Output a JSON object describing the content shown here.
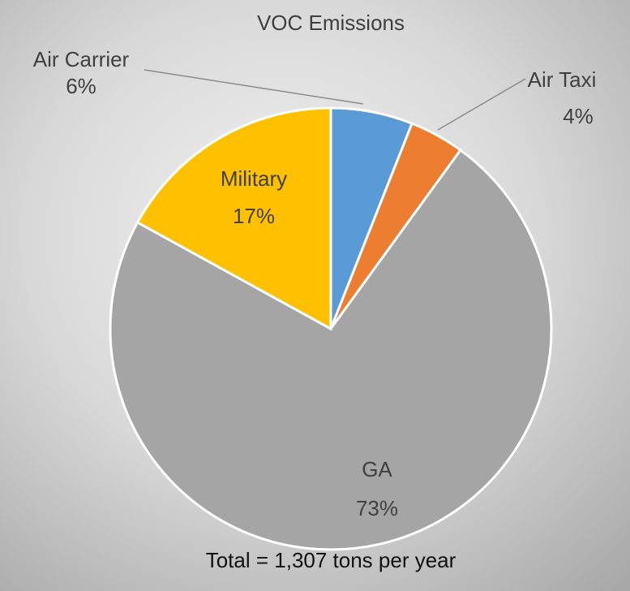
{
  "chart_data": {
    "type": "pie",
    "title": "VOC Emissions",
    "categories": [
      "Air Carrier",
      "Air Taxi",
      "GA",
      "Military"
    ],
    "values": [
      6,
      4,
      73,
      17
    ],
    "value_labels": [
      "6%",
      "4%",
      "73%",
      "17%"
    ],
    "colors": [
      "#5b9bd5",
      "#ed7d31",
      "#a5a5a5",
      "#ffc000"
    ],
    "annotation": "Total = 1,307 tons per year"
  }
}
